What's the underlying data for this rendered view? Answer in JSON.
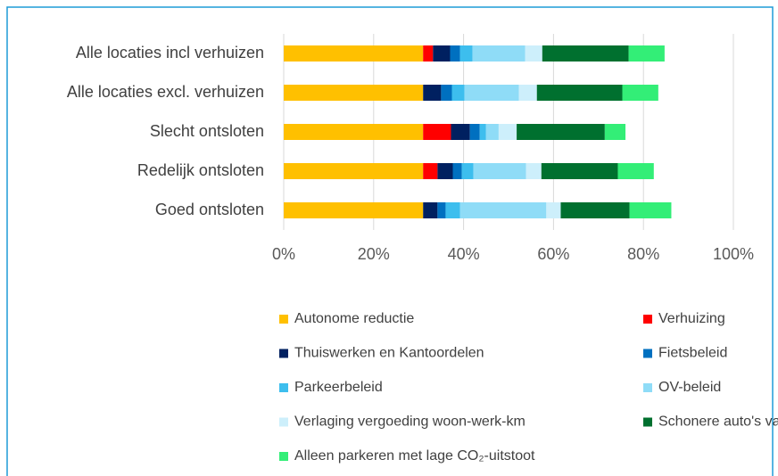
{
  "chart_data": {
    "type": "stacked-barh",
    "categories": [
      "Alle locaties incl verhuizen",
      "Alle locaties excl. verhuizen",
      "Slecht ontsloten",
      "Redelijk ontsloten",
      "Goed ontsloten"
    ],
    "series": [
      {
        "name": "Autonome reductie",
        "color": "#ffc000",
        "values": [
          31,
          31,
          31,
          31,
          31
        ]
      },
      {
        "name": "Verhuizing",
        "color": "#ff0000",
        "values": [
          2.2,
          0,
          6.2,
          3.2,
          0
        ]
      },
      {
        "name": "Thuiswerken en Kantoordelen",
        "color": "#002060",
        "values": [
          3.8,
          4,
          4.2,
          3.4,
          3.2
        ]
      },
      {
        "name": "Fietsbeleid",
        "color": "#0070c0",
        "values": [
          2.2,
          2.4,
          2.2,
          2,
          1.8
        ]
      },
      {
        "name": "Parkeerbeleid",
        "color": "#3dbeee",
        "values": [
          2.8,
          2.8,
          1.4,
          2.6,
          3.2
        ]
      },
      {
        "name": "OV-beleid",
        "color": "#8fdcf7",
        "values": [
          11.7,
          12.1,
          2.8,
          11.7,
          19.2
        ]
      },
      {
        "name": "Verlaging vergoeding woon-werk-km",
        "color": "#cdeffb",
        "values": [
          3.8,
          4,
          4,
          3.4,
          3.2
        ]
      },
      {
        "name": "Schonere auto's van de zaak",
        "color": "#00702f",
        "values": [
          19.2,
          19,
          19.6,
          17,
          15.3
        ]
      },
      {
        "name": "Alleen parkeren met lage CO₂-uitstoot",
        "color": "#33ee77",
        "values": [
          8,
          8,
          4.6,
          8,
          9.3
        ]
      }
    ],
    "xlim": [
      0,
      100
    ],
    "xticks": [
      {
        "value": 0,
        "label": "0%"
      },
      {
        "value": 20,
        "label": "20%"
      },
      {
        "value": 40,
        "label": "40%"
      },
      {
        "value": 60,
        "label": "60%"
      },
      {
        "value": 80,
        "label": "80%"
      },
      {
        "value": 100,
        "label": "100%"
      }
    ],
    "grid": true
  }
}
